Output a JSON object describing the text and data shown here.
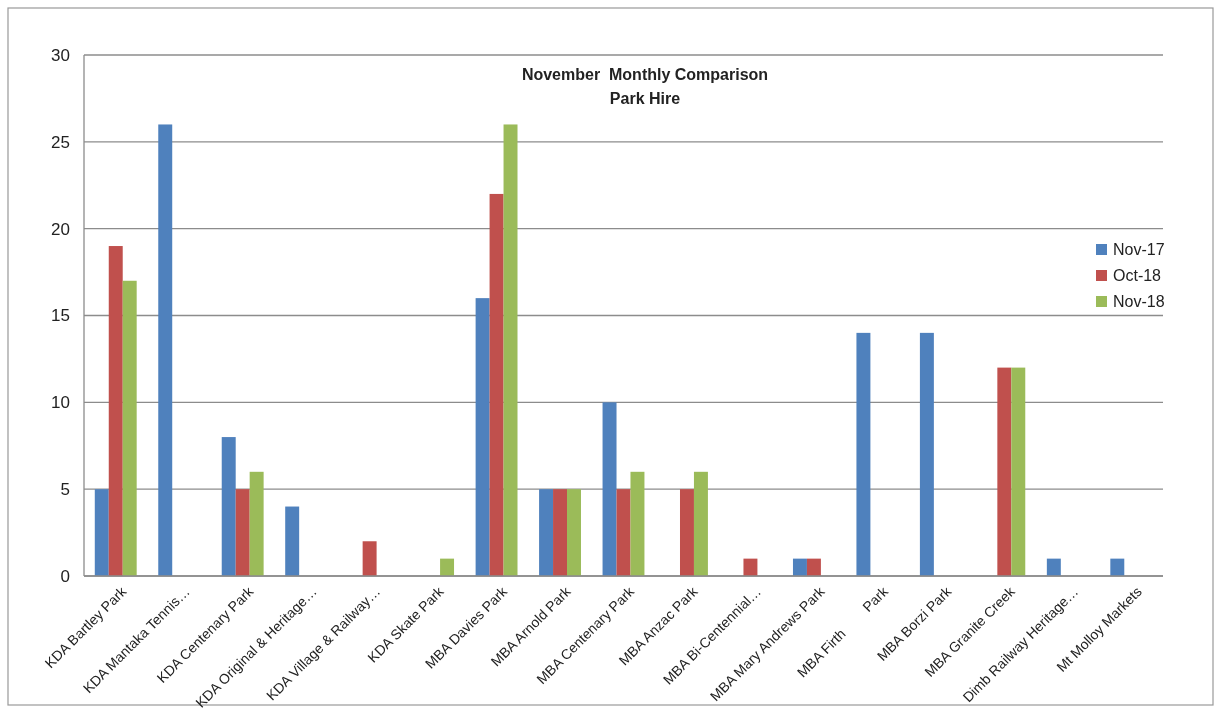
{
  "chart_data": {
    "type": "bar",
    "title": "November  Monthly Comparison\nPark Hire",
    "categories": [
      "KDA Bartley Park",
      "KDA Mantaka Tennis…",
      "KDA Centenary Park",
      "KDA Original & Heritage…",
      "KDA Village & Railway…",
      "KDA Skate Park",
      "MBA Davies Park",
      "MBA Arnold Park",
      "MBA Centenary Park",
      "MBA Anzac Park",
      "MBA Bi-Centennial…",
      "MBA Mary Andrews Park",
      "MBA Firth        Park",
      "MBA Borzi Park",
      "MBA Granite Creek",
      "Dimb Railway Heritage…",
      "Mt Molloy Markets"
    ],
    "series": [
      {
        "name": "Nov-17",
        "color": "#4f81bd",
        "values": [
          5,
          26,
          8,
          4,
          null,
          null,
          16,
          5,
          10,
          null,
          null,
          1,
          14,
          14,
          null,
          1,
          1
        ]
      },
      {
        "name": "Oct-18",
        "color": "#c0504d",
        "values": [
          19,
          null,
          5,
          null,
          2,
          null,
          22,
          5,
          5,
          5,
          1,
          1,
          null,
          null,
          12,
          null,
          null
        ]
      },
      {
        "name": "Nov-18",
        "color": "#9bbb59",
        "values": [
          17,
          null,
          6,
          null,
          null,
          1,
          26,
          5,
          6,
          6,
          null,
          null,
          null,
          null,
          12,
          null,
          null
        ]
      }
    ],
    "ylim": [
      0,
      30
    ],
    "yticks": [
      0,
      5,
      10,
      15,
      20,
      25,
      30
    ],
    "grid": "y",
    "legend": "right"
  }
}
